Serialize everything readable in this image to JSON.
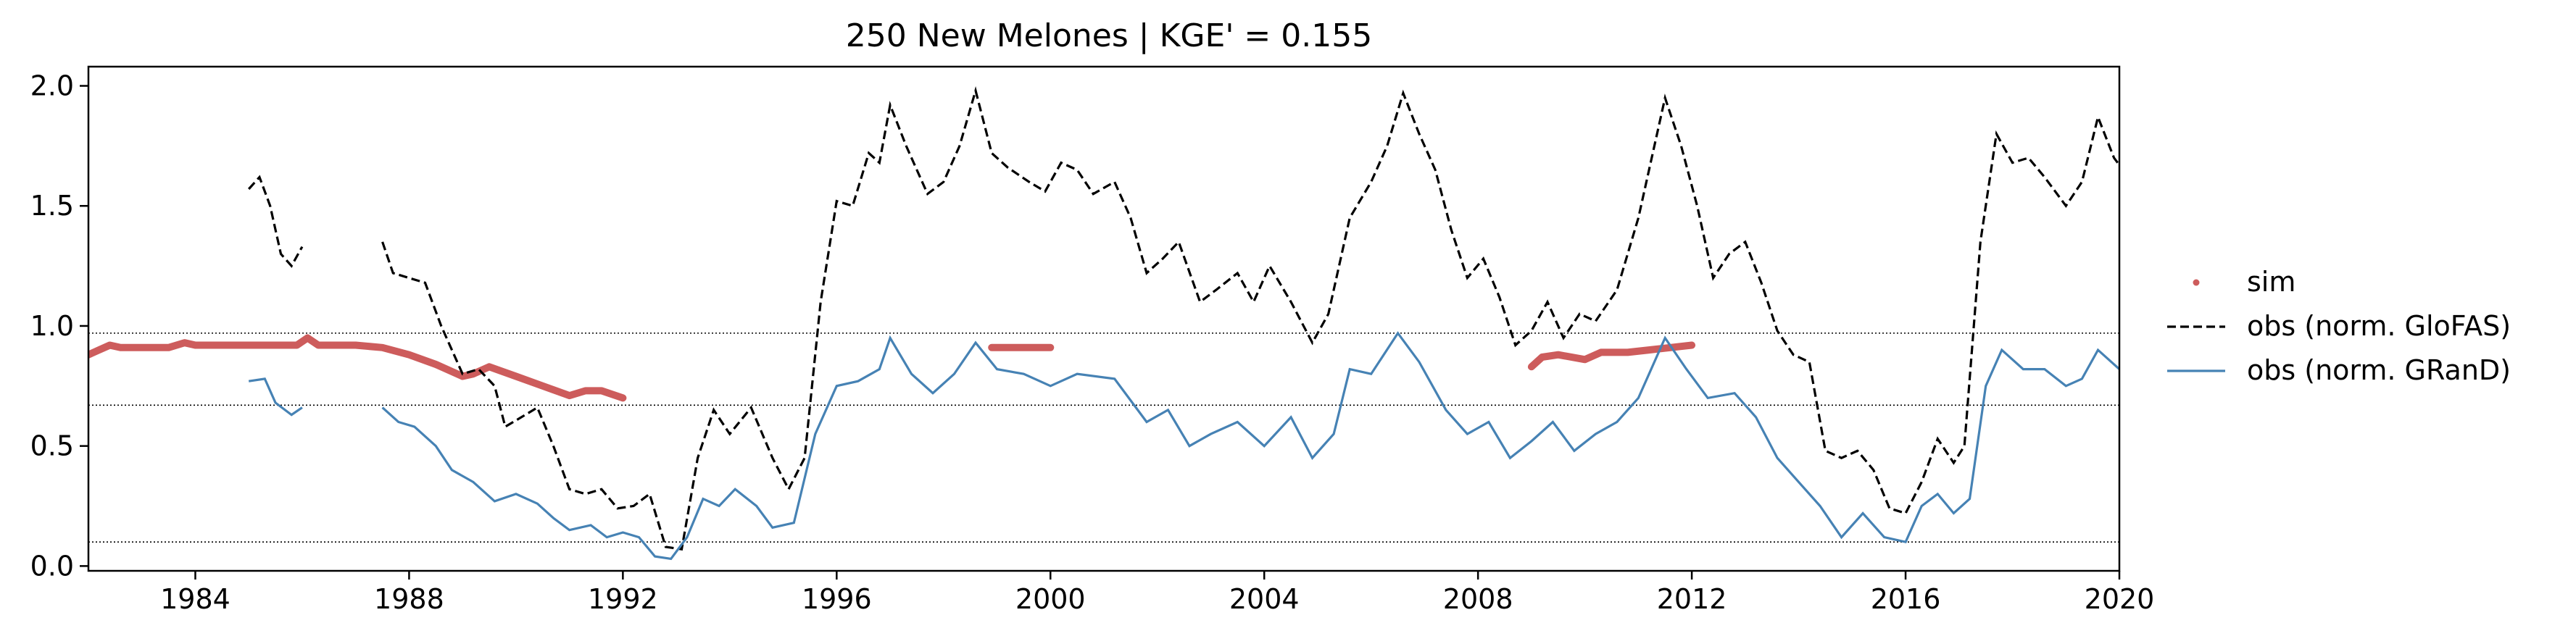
{
  "chart_data": {
    "type": "line",
    "title": "250  New Melones | KGE' = 0.155",
    "xlabel": "",
    "ylabel": "",
    "xlim": [
      1982.0,
      2020.0
    ],
    "ylim": [
      -0.02,
      2.08
    ],
    "x_ticks": [
      1984,
      1988,
      1992,
      1996,
      2000,
      2004,
      2008,
      2012,
      2016,
      2020
    ],
    "x_tick_labels": [
      "1984",
      "1988",
      "1992",
      "1996",
      "2000",
      "2004",
      "2008",
      "2012",
      "2016",
      "2020"
    ],
    "y_ticks": [
      0.0,
      0.5,
      1.0,
      1.5,
      2.0
    ],
    "y_tick_labels": [
      "0.0",
      "0.5",
      "1.0",
      "1.5",
      "2.0"
    ],
    "reference_lines": [
      0.97,
      0.67,
      0.1
    ],
    "legend_position": "right",
    "series": [
      {
        "name": "sim",
        "style": "dots",
        "color": "#cd5c5c",
        "segments": [
          [
            [
              1982.0,
              0.88
            ],
            [
              1982.2,
              0.9
            ],
            [
              1982.4,
              0.92
            ],
            [
              1982.6,
              0.91
            ],
            [
              1983.0,
              0.91
            ],
            [
              1983.5,
              0.91
            ],
            [
              1983.8,
              0.93
            ],
            [
              1984.0,
              0.92
            ],
            [
              1985.0,
              0.92
            ],
            [
              1985.9,
              0.92
            ],
            [
              1986.1,
              0.95
            ],
            [
              1986.3,
              0.92
            ],
            [
              1987.0,
              0.92
            ],
            [
              1987.5,
              0.91
            ],
            [
              1988.0,
              0.88
            ],
            [
              1988.5,
              0.84
            ],
            [
              1989.0,
              0.79
            ],
            [
              1989.2,
              0.8
            ],
            [
              1989.5,
              0.83
            ],
            [
              1990.0,
              0.79
            ],
            [
              1990.5,
              0.75
            ],
            [
              1991.0,
              0.71
            ],
            [
              1991.3,
              0.73
            ],
            [
              1991.6,
              0.73
            ],
            [
              1992.0,
              0.7
            ]
          ],
          [
            [
              1998.9,
              0.91
            ],
            [
              1999.5,
              0.91
            ],
            [
              2000.0,
              0.91
            ]
          ],
          [
            [
              2009.0,
              0.83
            ],
            [
              2009.2,
              0.87
            ],
            [
              2009.5,
              0.88
            ],
            [
              2010.0,
              0.86
            ],
            [
              2010.3,
              0.89
            ],
            [
              2010.8,
              0.89
            ],
            [
              2011.2,
              0.9
            ],
            [
              2011.6,
              0.91
            ],
            [
              2012.0,
              0.92
            ]
          ]
        ]
      },
      {
        "name": "obs (norm. GloFAS)",
        "style": "dashed",
        "color": "#000000",
        "segments": [
          [
            [
              1985.0,
              1.57
            ],
            [
              1985.2,
              1.62
            ],
            [
              1985.4,
              1.5
            ],
            [
              1985.6,
              1.3
            ],
            [
              1985.8,
              1.25
            ],
            [
              1986.0,
              1.33
            ]
          ],
          [
            [
              1987.5,
              1.35
            ],
            [
              1987.7,
              1.22
            ],
            [
              1988.0,
              1.2
            ],
            [
              1988.3,
              1.18
            ],
            [
              1988.6,
              1.0
            ],
            [
              1989.0,
              0.8
            ],
            [
              1989.3,
              0.82
            ],
            [
              1989.6,
              0.75
            ],
            [
              1989.8,
              0.58
            ],
            [
              1990.1,
              0.62
            ],
            [
              1990.4,
              0.66
            ],
            [
              1990.7,
              0.5
            ],
            [
              1991.0,
              0.32
            ],
            [
              1991.3,
              0.3
            ],
            [
              1991.6,
              0.32
            ],
            [
              1991.9,
              0.24
            ],
            [
              1992.2,
              0.25
            ],
            [
              1992.5,
              0.3
            ],
            [
              1992.8,
              0.08
            ],
            [
              1993.1,
              0.07
            ],
            [
              1993.4,
              0.45
            ],
            [
              1993.7,
              0.65
            ],
            [
              1994.0,
              0.55
            ],
            [
              1994.4,
              0.66
            ],
            [
              1994.8,
              0.45
            ],
            [
              1995.1,
              0.32
            ],
            [
              1995.4,
              0.45
            ],
            [
              1995.7,
              1.1
            ],
            [
              1996.0,
              1.52
            ],
            [
              1996.3,
              1.5
            ],
            [
              1996.6,
              1.72
            ],
            [
              1996.8,
              1.68
            ],
            [
              1997.0,
              1.92
            ],
            [
              1997.3,
              1.75
            ],
            [
              1997.7,
              1.55
            ],
            [
              1998.0,
              1.6
            ],
            [
              1998.3,
              1.75
            ],
            [
              1998.6,
              1.98
            ],
            [
              1998.9,
              1.72
            ],
            [
              1999.2,
              1.66
            ],
            [
              1999.6,
              1.6
            ],
            [
              1999.9,
              1.56
            ],
            [
              2000.2,
              1.68
            ],
            [
              2000.5,
              1.65
            ],
            [
              2000.8,
              1.55
            ],
            [
              2001.2,
              1.6
            ],
            [
              2001.5,
              1.45
            ],
            [
              2001.8,
              1.22
            ],
            [
              2002.1,
              1.28
            ],
            [
              2002.4,
              1.35
            ],
            [
              2002.8,
              1.1
            ],
            [
              2003.1,
              1.15
            ],
            [
              2003.5,
              1.22
            ],
            [
              2003.8,
              1.1
            ],
            [
              2004.1,
              1.25
            ],
            [
              2004.5,
              1.1
            ],
            [
              2004.9,
              0.93
            ],
            [
              2005.2,
              1.05
            ],
            [
              2005.6,
              1.45
            ],
            [
              2006.0,
              1.6
            ],
            [
              2006.3,
              1.75
            ],
            [
              2006.6,
              1.97
            ],
            [
              2006.9,
              1.8
            ],
            [
              2007.2,
              1.65
            ],
            [
              2007.5,
              1.4
            ],
            [
              2007.8,
              1.2
            ],
            [
              2008.1,
              1.28
            ],
            [
              2008.4,
              1.12
            ],
            [
              2008.7,
              0.92
            ],
            [
              2009.0,
              0.98
            ],
            [
              2009.3,
              1.1
            ],
            [
              2009.6,
              0.95
            ],
            [
              2009.9,
              1.05
            ],
            [
              2010.2,
              1.02
            ],
            [
              2010.6,
              1.15
            ],
            [
              2011.0,
              1.45
            ],
            [
              2011.5,
              1.95
            ],
            [
              2011.8,
              1.75
            ],
            [
              2012.1,
              1.5
            ],
            [
              2012.4,
              1.2
            ],
            [
              2012.7,
              1.3
            ],
            [
              2013.0,
              1.35
            ],
            [
              2013.3,
              1.18
            ],
            [
              2013.6,
              0.98
            ],
            [
              2013.9,
              0.88
            ],
            [
              2014.2,
              0.85
            ],
            [
              2014.5,
              0.48
            ],
            [
              2014.8,
              0.45
            ],
            [
              2015.1,
              0.48
            ],
            [
              2015.4,
              0.4
            ],
            [
              2015.7,
              0.24
            ],
            [
              2016.0,
              0.22
            ],
            [
              2016.3,
              0.35
            ],
            [
              2016.6,
              0.53
            ],
            [
              2016.9,
              0.43
            ],
            [
              2017.1,
              0.5
            ],
            [
              2017.4,
              1.35
            ],
            [
              2017.7,
              1.8
            ],
            [
              2018.0,
              1.68
            ],
            [
              2018.3,
              1.7
            ],
            [
              2018.6,
              1.62
            ],
            [
              2019.0,
              1.5
            ],
            [
              2019.3,
              1.6
            ],
            [
              2019.6,
              1.87
            ],
            [
              2019.9,
              1.7
            ],
            [
              2020.0,
              1.67
            ]
          ]
        ]
      },
      {
        "name": "obs (norm. GRanD)",
        "style": "solid",
        "color": "#4682b4",
        "segments": [
          [
            [
              1985.0,
              0.77
            ],
            [
              1985.3,
              0.78
            ],
            [
              1985.5,
              0.68
            ],
            [
              1985.8,
              0.63
            ],
            [
              1986.0,
              0.66
            ]
          ],
          [
            [
              1987.5,
              0.66
            ],
            [
              1987.8,
              0.6
            ],
            [
              1988.1,
              0.58
            ],
            [
              1988.5,
              0.5
            ],
            [
              1988.8,
              0.4
            ],
            [
              1989.2,
              0.35
            ],
            [
              1989.6,
              0.27
            ],
            [
              1990.0,
              0.3
            ],
            [
              1990.4,
              0.26
            ],
            [
              1990.7,
              0.2
            ],
            [
              1991.0,
              0.15
            ],
            [
              1991.4,
              0.17
            ],
            [
              1991.7,
              0.12
            ],
            [
              1992.0,
              0.14
            ],
            [
              1992.3,
              0.12
            ],
            [
              1992.6,
              0.04
            ],
            [
              1992.9,
              0.03
            ],
            [
              1993.2,
              0.12
            ],
            [
              1993.5,
              0.28
            ],
            [
              1993.8,
              0.25
            ],
            [
              1994.1,
              0.32
            ],
            [
              1994.5,
              0.25
            ],
            [
              1994.8,
              0.16
            ],
            [
              1995.2,
              0.18
            ],
            [
              1995.6,
              0.55
            ],
            [
              1996.0,
              0.75
            ],
            [
              1996.4,
              0.77
            ],
            [
              1996.8,
              0.82
            ],
            [
              1997.0,
              0.95
            ],
            [
              1997.4,
              0.8
            ],
            [
              1997.8,
              0.72
            ],
            [
              1998.2,
              0.8
            ],
            [
              1998.6,
              0.93
            ],
            [
              1999.0,
              0.82
            ],
            [
              1999.5,
              0.8
            ],
            [
              2000.0,
              0.75
            ],
            [
              2000.5,
              0.8
            ],
            [
              2001.2,
              0.78
            ],
            [
              2001.8,
              0.6
            ],
            [
              2002.2,
              0.65
            ],
            [
              2002.6,
              0.5
            ],
            [
              2003.0,
              0.55
            ],
            [
              2003.5,
              0.6
            ],
            [
              2004.0,
              0.5
            ],
            [
              2004.5,
              0.62
            ],
            [
              2004.9,
              0.45
            ],
            [
              2005.3,
              0.55
            ],
            [
              2005.6,
              0.82
            ],
            [
              2006.0,
              0.8
            ],
            [
              2006.5,
              0.97
            ],
            [
              2006.9,
              0.85
            ],
            [
              2007.4,
              0.65
            ],
            [
              2007.8,
              0.55
            ],
            [
              2008.2,
              0.6
            ],
            [
              2008.6,
              0.45
            ],
            [
              2009.0,
              0.52
            ],
            [
              2009.4,
              0.6
            ],
            [
              2009.8,
              0.48
            ],
            [
              2010.2,
              0.55
            ],
            [
              2010.6,
              0.6
            ],
            [
              2011.0,
              0.7
            ],
            [
              2011.5,
              0.95
            ],
            [
              2011.9,
              0.82
            ],
            [
              2012.3,
              0.7
            ],
            [
              2012.8,
              0.72
            ],
            [
              2013.2,
              0.62
            ],
            [
              2013.6,
              0.45
            ],
            [
              2014.0,
              0.35
            ],
            [
              2014.4,
              0.25
            ],
            [
              2014.8,
              0.12
            ],
            [
              2015.2,
              0.22
            ],
            [
              2015.6,
              0.12
            ],
            [
              2016.0,
              0.1
            ],
            [
              2016.3,
              0.25
            ],
            [
              2016.6,
              0.3
            ],
            [
              2016.9,
              0.22
            ],
            [
              2017.2,
              0.28
            ],
            [
              2017.5,
              0.75
            ],
            [
              2017.8,
              0.9
            ],
            [
              2018.2,
              0.82
            ],
            [
              2018.6,
              0.82
            ],
            [
              2019.0,
              0.75
            ],
            [
              2019.3,
              0.78
            ],
            [
              2019.6,
              0.9
            ],
            [
              2020.0,
              0.82
            ]
          ]
        ]
      }
    ]
  }
}
